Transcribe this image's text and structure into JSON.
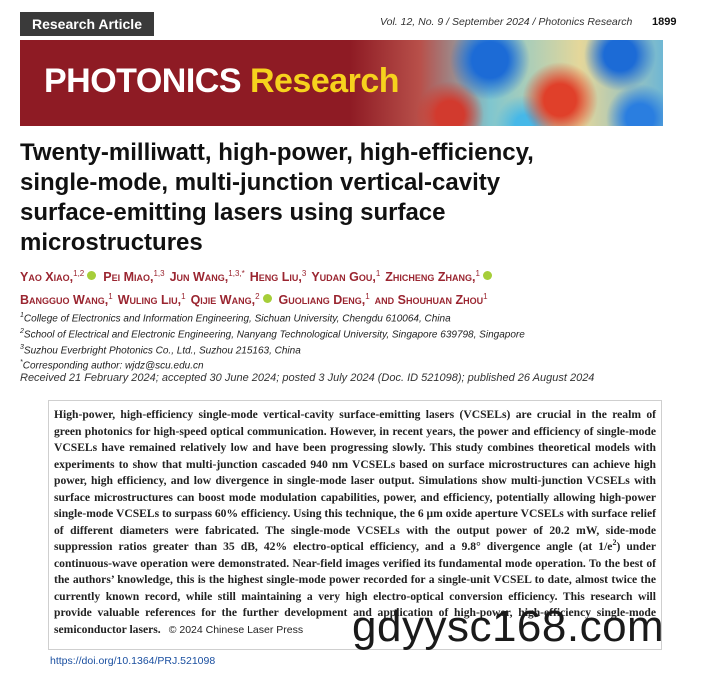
{
  "header": {
    "article_type": "Research Article",
    "journal_info": "Vol. 12, No. 9 / September 2024 / Photonics Research",
    "page": "1899"
  },
  "banner": {
    "name_part_1": "PHOTONICS",
    "name_part_2": "Research"
  },
  "title_lines": [
    "Twenty-milliwatt, high-power, high-efficiency,",
    "single-mode, multi-junction vertical-cavity",
    "surface-emitting lasers using surface",
    "microstructures"
  ],
  "author_lines": [
    [
      {
        "name": "Yao Xiao,",
        "affil": "1,2",
        "orcid": true
      },
      {
        "name": "Pei Miao,",
        "affil": "1,3",
        "orcid": false
      },
      {
        "name": "Jun Wang,",
        "affil": "1,3,*",
        "orcid": false
      },
      {
        "name": "Heng Liu,",
        "affil": "3",
        "orcid": false
      },
      {
        "name": "Yudan Gou,",
        "affil": "1",
        "orcid": false
      },
      {
        "name": "Zhicheng Zhang,",
        "affil": "1",
        "orcid": true
      }
    ],
    [
      {
        "name": "Bangguo Wang,",
        "affil": "1",
        "orcid": false
      },
      {
        "name": "Wuling Liu,",
        "affil": "1",
        "orcid": false
      },
      {
        "name": "Qijie Wang,",
        "affil": "2",
        "orcid": true
      },
      {
        "name": "Guoliang Deng,",
        "affil": "1",
        "orcid": false
      },
      {
        "name": "and Shouhuan Zhou",
        "affil": "1",
        "orcid": false
      }
    ]
  ],
  "affiliations": [
    {
      "mark": "1",
      "text": "College of Electronics and Information Engineering, Sichuan University, Chengdu 610064, China"
    },
    {
      "mark": "2",
      "text": "School of Electrical and Electronic Engineering, Nanyang Technological University, Singapore 639798, Singapore"
    },
    {
      "mark": "3",
      "text": "Suzhou Everbright Photonics Co., Ltd., Suzhou 215163, China"
    },
    {
      "mark": "*",
      "text": "Corresponding author: wjdz@scu.edu.cn"
    }
  ],
  "history": "Received 21 February 2024; accepted 30 June 2024; posted 3 July 2024 (Doc. ID 521098); published 26 August 2024",
  "abstract": {
    "text_1": "High-power, high-efficiency single-mode vertical-cavity surface-emitting lasers (VCSELs) are crucial in the realm of green photonics for high-speed optical communication. However, in recent years, the power and efficiency of single-mode VCSELs have remained relatively low and have been progressing slowly. This study combines theoretical models with experiments to show that multi-junction cascaded 940 nm VCSELs based on surface microstructures can achieve high power, high efficiency, and low divergence in single-mode laser output. Simulations show multi-junction VCSELs with surface microstructures can boost mode modulation capabilities, power, and efficiency, potentially allowing high-power single-mode VCSELs to surpass 60% efficiency. Using this technique, the 6 μm oxide aperture VCSELs with surface relief of different diameters were fabricated. The single-mode VCSELs with the output power of 20.2 mW, side-mode suppression ratios greater than 35 dB, 42% electro-optical efficiency, and a 9.8° divergence angle (at 1/e",
    "superscript": "2",
    "text_2": ") under continuous-wave operation were demonstrated. Near-field images verified its fundamental mode operation. To the best of the authors’ knowledge, this is the highest single-mode power recorded for a single-unit VCSEL to date, almost twice the currently known record, while still maintaining a very high electro-optical conversion efficiency. This research will provide valuable references for the further development and application of high-power, high-efficiency single-mode semiconductor lasers.",
    "copyright": "© 2024 Chinese Laser Press"
  },
  "doi": "https://doi.org/10.1364/PRJ.521098",
  "watermark": "gdyysc168.com"
}
